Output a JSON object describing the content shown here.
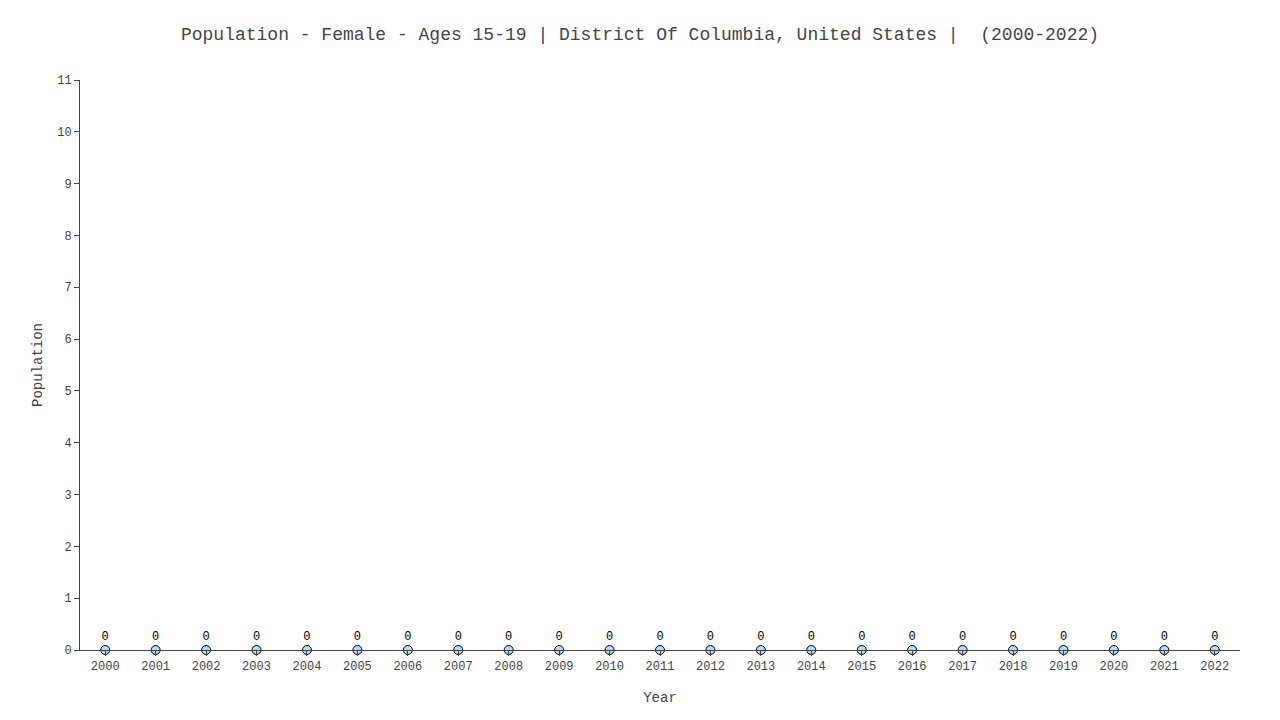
{
  "chart_data": {
    "type": "scatter",
    "title": "Population - Female - Ages 15-19 | District Of Columbia, United States |  (2000-2022)",
    "x_label": "Year",
    "y_label": "Population",
    "x": [
      2000,
      2001,
      2002,
      2003,
      2004,
      2005,
      2006,
      2007,
      2008,
      2009,
      2010,
      2011,
      2012,
      2013,
      2014,
      2015,
      2016,
      2017,
      2018,
      2019,
      2020,
      2021,
      2022
    ],
    "values": [
      0,
      0,
      0,
      0,
      0,
      0,
      0,
      0,
      0,
      0,
      0,
      0,
      0,
      0,
      0,
      0,
      0,
      0,
      0,
      0,
      0,
      0,
      0
    ],
    "color": "#aaddff",
    "marker": "circle",
    "xlim": [
      1999.5,
      2022.5
    ],
    "xticks": [
      2000,
      2001,
      2002,
      2003,
      2004,
      2005,
      2006,
      2007,
      2008,
      2009,
      2010,
      2011,
      2012,
      2013,
      2014,
      2015,
      2016,
      2017,
      2018,
      2019,
      2020,
      2021,
      2022
    ],
    "ylim": [
      0,
      11
    ],
    "yticks": [
      0,
      1,
      2,
      3,
      4,
      5,
      6,
      7,
      8,
      9,
      10,
      11
    ],
    "data_labels": true,
    "grid": false
  }
}
